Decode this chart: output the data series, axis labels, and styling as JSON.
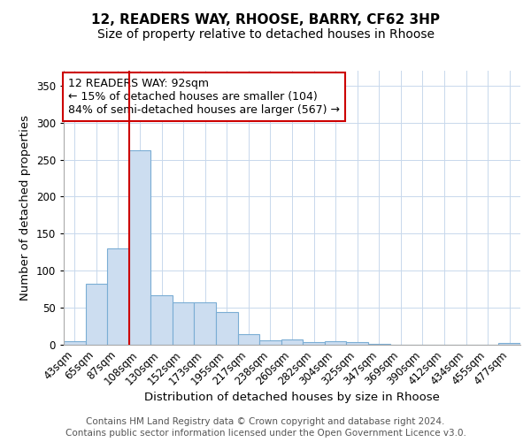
{
  "title": "12, READERS WAY, RHOOSE, BARRY, CF62 3HP",
  "subtitle": "Size of property relative to detached houses in Rhoose",
  "xlabel": "Distribution of detached houses by size in Rhoose",
  "ylabel": "Number of detached properties",
  "categories": [
    "43sqm",
    "65sqm",
    "87sqm",
    "108sqm",
    "130sqm",
    "152sqm",
    "173sqm",
    "195sqm",
    "217sqm",
    "238sqm",
    "260sqm",
    "282sqm",
    "304sqm",
    "325sqm",
    "347sqm",
    "369sqm",
    "390sqm",
    "412sqm",
    "434sqm",
    "455sqm",
    "477sqm"
  ],
  "values": [
    5,
    82,
    130,
    262,
    67,
    57,
    57,
    44,
    14,
    6,
    7,
    4,
    5,
    3,
    1,
    0,
    0,
    0,
    0,
    0,
    2
  ],
  "bar_color": "#ccddf0",
  "bar_edge_color": "#7aadd4",
  "property_line_color": "#cc0000",
  "property_line_index": 2.5,
  "annotation_text": "12 READERS WAY: 92sqm\n← 15% of detached houses are smaller (104)\n84% of semi-detached houses are larger (567) →",
  "annotation_box_color": "#ffffff",
  "annotation_box_edge_color": "#cc0000",
  "ylim": [
    0,
    370
  ],
  "yticks": [
    0,
    50,
    100,
    150,
    200,
    250,
    300,
    350
  ],
  "grid_color": "#c8d8ec",
  "footer_line1": "Contains HM Land Registry data © Crown copyright and database right 2024.",
  "footer_line2": "Contains public sector information licensed under the Open Government Licence v3.0.",
  "title_fontsize": 11,
  "subtitle_fontsize": 10,
  "axis_label_fontsize": 9.5,
  "tick_fontsize": 8.5,
  "annotation_fontsize": 9,
  "footer_fontsize": 7.5
}
